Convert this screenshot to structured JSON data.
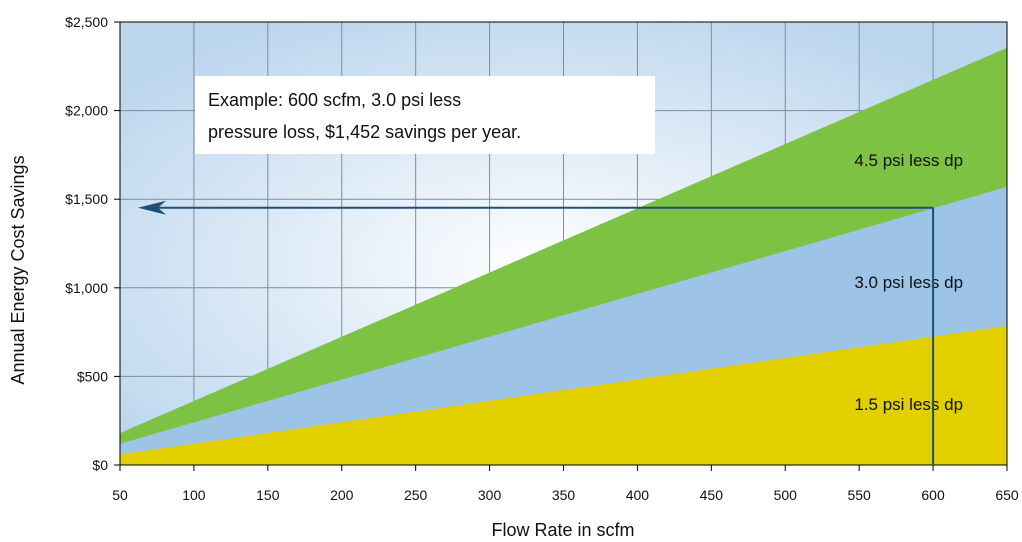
{
  "chart_data": {
    "type": "area",
    "xlabel": "Flow Rate in scfm",
    "ylabel": "Annual Energy Cost Savings",
    "xlim": [
      50,
      650
    ],
    "ylim": [
      0,
      2500
    ],
    "x_ticks": [
      "50",
      "100",
      "150",
      "200",
      "250",
      "300",
      "350",
      "400",
      "450",
      "500",
      "550",
      "600",
      "650"
    ],
    "y_ticks": [
      "$0",
      "$500",
      "$1,000",
      "$1,500",
      "$2,000",
      "$2,500"
    ],
    "grid": true,
    "x": [
      50,
      650
    ],
    "series": [
      {
        "name": "1.5 psi less dp",
        "values": [
          60,
          785
        ],
        "color": "#e2cf00"
      },
      {
        "name": "3.0 psi less dp",
        "values": [
          120,
          1570
        ],
        "color": "#9dc3e6"
      },
      {
        "name": "4.5 psi less dp",
        "values": [
          180,
          2355
        ],
        "color": "#7dc242"
      }
    ],
    "annotation": {
      "lines": [
        "Example: 600 scfm, 3.0 psi less",
        "pressure loss, $1,452 savings per year."
      ],
      "example_x": 600,
      "example_y": 1452,
      "arrow_to_x": 50,
      "arrow_color": "#1f4e79"
    }
  }
}
